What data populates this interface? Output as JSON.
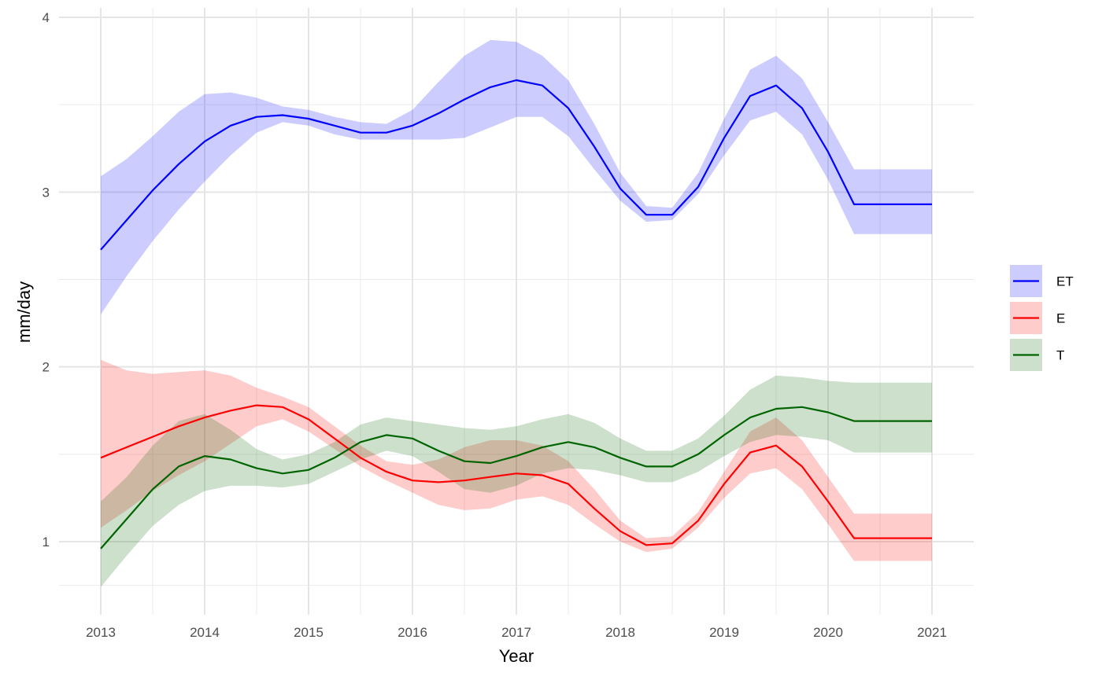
{
  "chart_data": {
    "type": "line",
    "xlabel": "Year",
    "ylabel": "mm/day",
    "xlim": [
      2013,
      2021
    ],
    "ylim": [
      0.6,
      4.0
    ],
    "x_ticks": [
      2013,
      2014,
      2015,
      2016,
      2017,
      2018,
      2019,
      2020,
      2021
    ],
    "y_ticks": [
      1,
      2,
      3,
      4
    ],
    "grid": true,
    "legend_position": "right",
    "x": [
      2013.0,
      2013.25,
      2013.5,
      2013.75,
      2014.0,
      2014.25,
      2014.5,
      2014.75,
      2015.0,
      2015.25,
      2015.5,
      2015.75,
      2016.0,
      2016.25,
      2016.5,
      2016.75,
      2017.0,
      2017.25,
      2017.5,
      2017.75,
      2018.0,
      2018.25,
      2018.5,
      2018.75,
      2019.0,
      2019.25,
      2019.5,
      2019.75,
      2020.0,
      2020.25,
      2020.5,
      2020.75,
      2021.0
    ],
    "series": [
      {
        "name": "ET",
        "color": "#0000ff",
        "fill": "#ccccff",
        "values": [
          2.67,
          2.84,
          3.01,
          3.16,
          3.29,
          3.38,
          3.43,
          3.44,
          3.42,
          3.38,
          3.34,
          3.34,
          3.38,
          3.45,
          3.53,
          3.6,
          3.64,
          3.61,
          3.48,
          3.26,
          3.02,
          2.87,
          2.87,
          3.03,
          3.31,
          3.55,
          3.61,
          3.48,
          3.23,
          2.93,
          2.93,
          2.93,
          2.93
        ],
        "lower": [
          2.3,
          2.52,
          2.72,
          2.9,
          3.06,
          3.21,
          3.34,
          3.4,
          3.38,
          3.33,
          3.3,
          3.3,
          3.3,
          3.3,
          3.31,
          3.37,
          3.43,
          3.43,
          3.32,
          3.13,
          2.95,
          2.83,
          2.84,
          2.99,
          3.21,
          3.41,
          3.46,
          3.33,
          3.07,
          2.76,
          2.76,
          2.76,
          2.76
        ],
        "upper": [
          3.09,
          3.19,
          3.32,
          3.46,
          3.56,
          3.57,
          3.54,
          3.49,
          3.47,
          3.43,
          3.4,
          3.39,
          3.47,
          3.63,
          3.78,
          3.87,
          3.86,
          3.78,
          3.64,
          3.39,
          3.11,
          2.92,
          2.91,
          3.11,
          3.42,
          3.7,
          3.78,
          3.65,
          3.4,
          3.13,
          3.13,
          3.13,
          3.13
        ]
      },
      {
        "name": "E",
        "color": "#ff0000",
        "fill": "#ffcccc",
        "values": [
          1.48,
          1.54,
          1.6,
          1.66,
          1.71,
          1.75,
          1.78,
          1.77,
          1.7,
          1.59,
          1.48,
          1.4,
          1.35,
          1.34,
          1.35,
          1.37,
          1.39,
          1.38,
          1.33,
          1.19,
          1.06,
          0.98,
          0.99,
          1.12,
          1.33,
          1.51,
          1.55,
          1.43,
          1.23,
          1.02,
          1.02,
          1.02,
          1.02
        ],
        "lower": [
          1.08,
          1.18,
          1.29,
          1.38,
          1.46,
          1.56,
          1.66,
          1.7,
          1.63,
          1.53,
          1.43,
          1.35,
          1.28,
          1.21,
          1.18,
          1.19,
          1.24,
          1.26,
          1.21,
          1.1,
          1.0,
          0.94,
          0.96,
          1.08,
          1.25,
          1.39,
          1.42,
          1.3,
          1.1,
          0.89,
          0.89,
          0.89,
          0.89
        ],
        "upper": [
          2.04,
          1.98,
          1.96,
          1.97,
          1.98,
          1.95,
          1.88,
          1.83,
          1.77,
          1.66,
          1.55,
          1.46,
          1.44,
          1.47,
          1.54,
          1.58,
          1.58,
          1.55,
          1.46,
          1.3,
          1.12,
          1.02,
          1.03,
          1.17,
          1.4,
          1.63,
          1.71,
          1.58,
          1.37,
          1.16,
          1.16,
          1.16,
          1.16
        ]
      },
      {
        "name": "T",
        "color": "#006400",
        "fill": "#c9e0c9",
        "values": [
          0.96,
          1.13,
          1.3,
          1.43,
          1.49,
          1.47,
          1.42,
          1.39,
          1.41,
          1.48,
          1.57,
          1.61,
          1.59,
          1.52,
          1.46,
          1.45,
          1.49,
          1.54,
          1.57,
          1.54,
          1.48,
          1.43,
          1.43,
          1.5,
          1.61,
          1.71,
          1.76,
          1.77,
          1.74,
          1.69,
          1.69,
          1.69,
          1.69
        ],
        "lower": [
          0.74,
          0.92,
          1.09,
          1.21,
          1.29,
          1.32,
          1.32,
          1.31,
          1.33,
          1.4,
          1.47,
          1.52,
          1.49,
          1.4,
          1.3,
          1.28,
          1.32,
          1.39,
          1.42,
          1.41,
          1.38,
          1.34,
          1.34,
          1.4,
          1.49,
          1.57,
          1.61,
          1.6,
          1.58,
          1.51,
          1.51,
          1.51,
          1.51
        ],
        "upper": [
          1.23,
          1.37,
          1.55,
          1.69,
          1.73,
          1.64,
          1.53,
          1.47,
          1.5,
          1.57,
          1.67,
          1.71,
          1.69,
          1.67,
          1.65,
          1.64,
          1.66,
          1.7,
          1.73,
          1.68,
          1.59,
          1.52,
          1.52,
          1.59,
          1.72,
          1.87,
          1.95,
          1.94,
          1.92,
          1.91,
          1.91,
          1.91,
          1.91
        ]
      }
    ]
  }
}
